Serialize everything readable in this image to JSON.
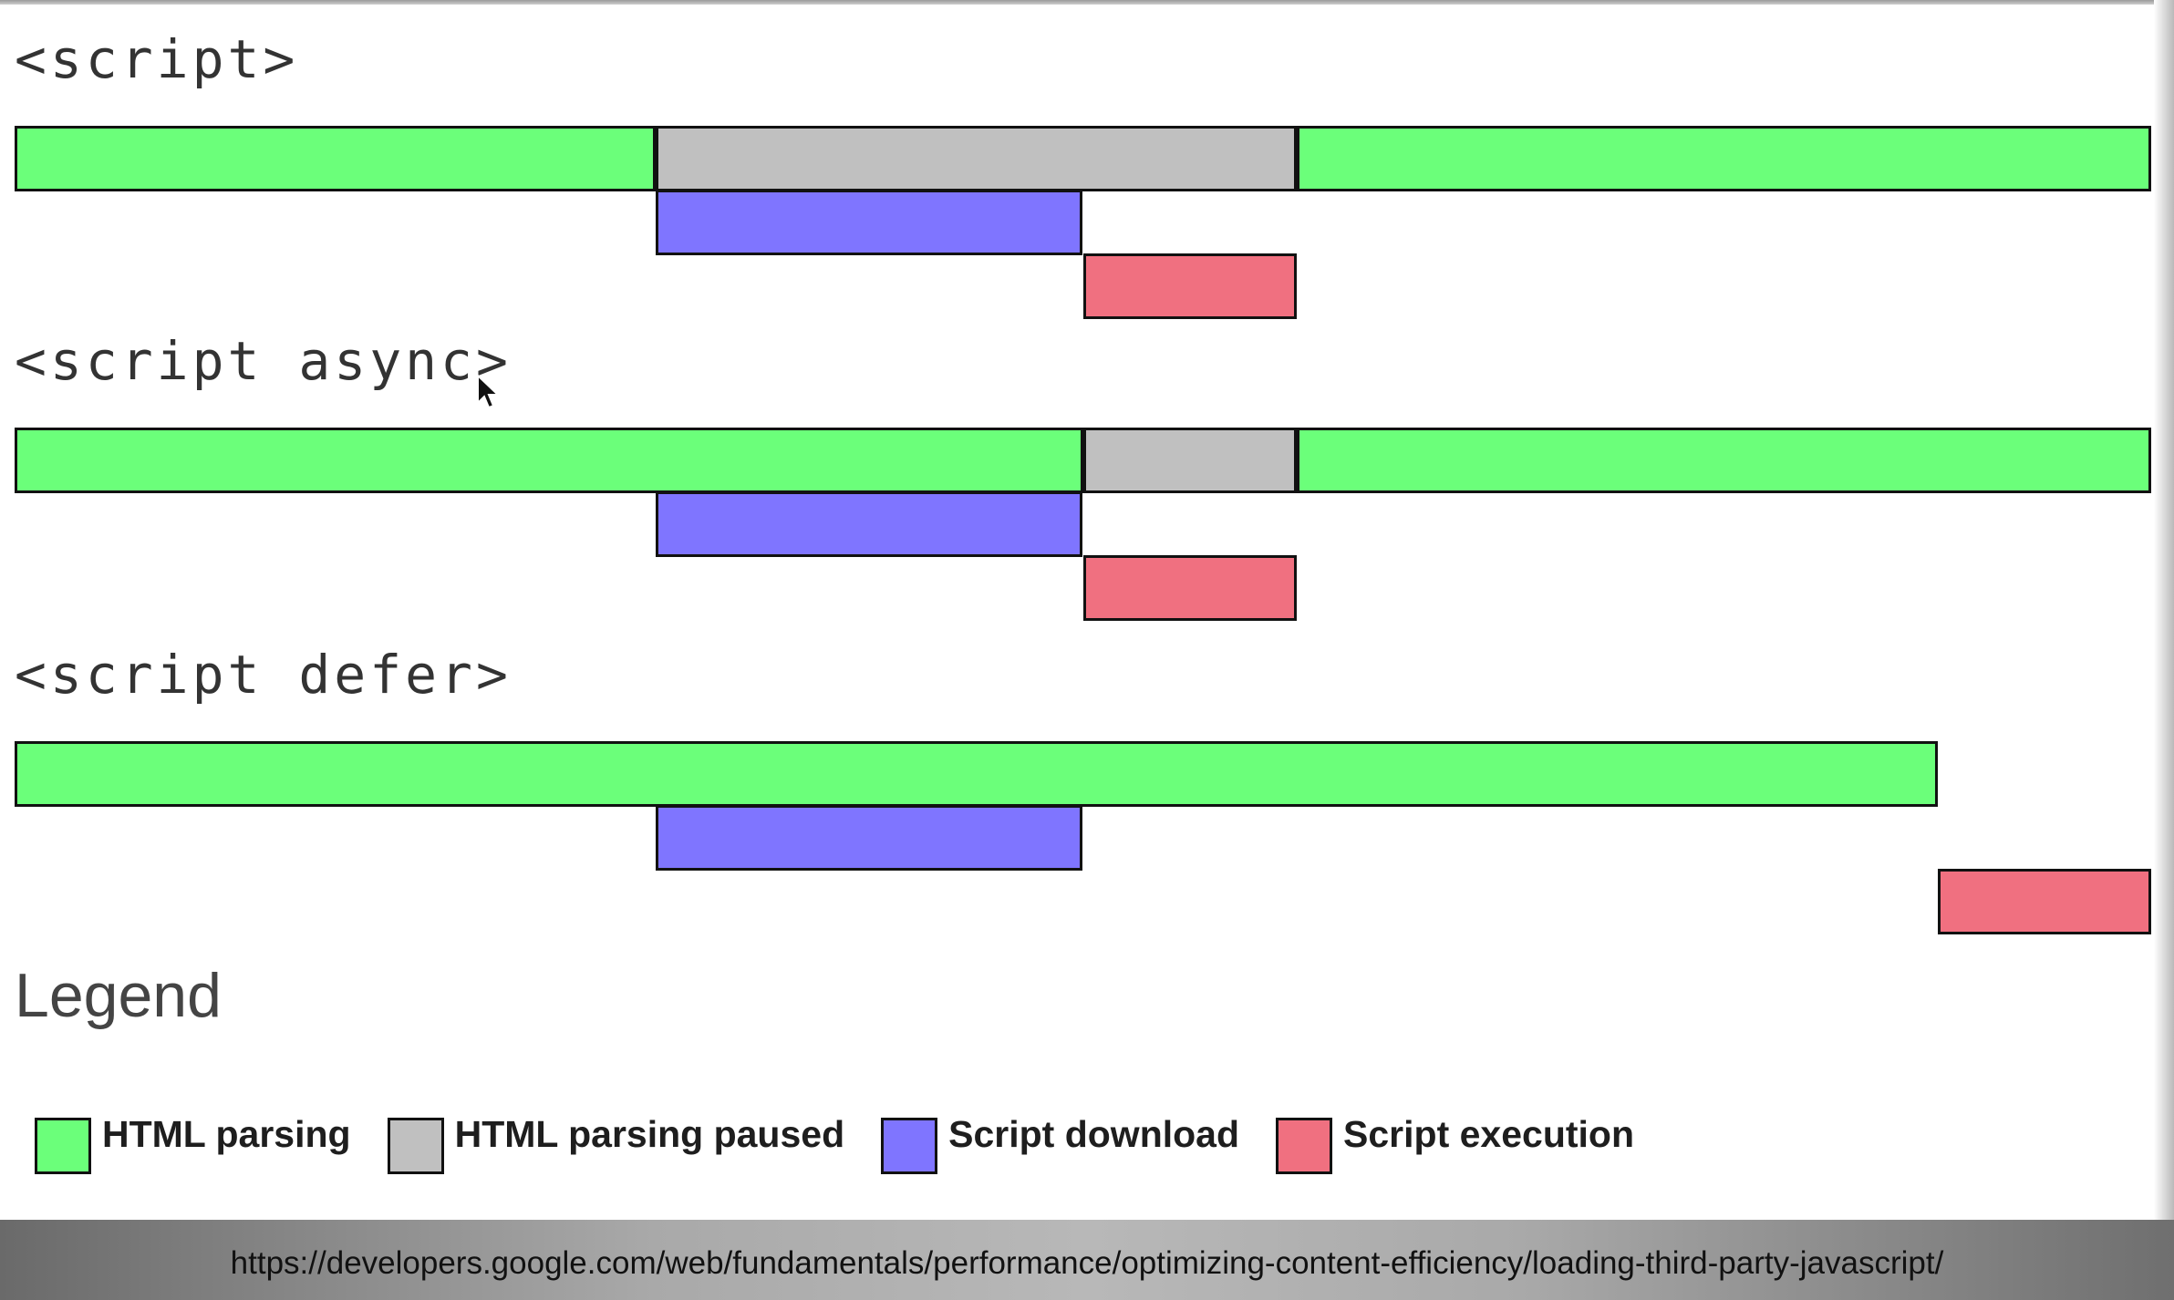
{
  "colors": {
    "html_parsing": "#6bff7a",
    "html_parsing_paused": "#c0c0c0",
    "script_download": "#7f75ff",
    "script_execution": "#f07080",
    "outline": "#111111"
  },
  "sections": [
    {
      "label": "<script>",
      "rows": [
        {
          "row": 1,
          "segments": [
            {
              "kind": "html_parsing",
              "start": 0,
              "end": 30
            },
            {
              "kind": "html_parsing_paused",
              "start": 30,
              "end": 60
            },
            {
              "kind": "html_parsing",
              "start": 60,
              "end": 100
            }
          ]
        },
        {
          "row": 2,
          "segments": [
            {
              "kind": "script_download",
              "start": 30,
              "end": 50
            }
          ]
        },
        {
          "row": 3,
          "segments": [
            {
              "kind": "script_execution",
              "start": 50,
              "end": 60
            }
          ]
        }
      ]
    },
    {
      "label": "<script async>",
      "rows": [
        {
          "row": 1,
          "segments": [
            {
              "kind": "html_parsing",
              "start": 0,
              "end": 50
            },
            {
              "kind": "html_parsing_paused",
              "start": 50,
              "end": 60
            },
            {
              "kind": "html_parsing",
              "start": 60,
              "end": 100
            }
          ]
        },
        {
          "row": 2,
          "segments": [
            {
              "kind": "script_download",
              "start": 30,
              "end": 50
            }
          ]
        },
        {
          "row": 3,
          "segments": [
            {
              "kind": "script_execution",
              "start": 50,
              "end": 60
            }
          ]
        }
      ]
    },
    {
      "label": "<script defer>",
      "rows": [
        {
          "row": 1,
          "segments": [
            {
              "kind": "html_parsing",
              "start": 0,
              "end": 90
            }
          ]
        },
        {
          "row": 2,
          "segments": [
            {
              "kind": "script_download",
              "start": 30,
              "end": 50
            }
          ]
        },
        {
          "row": 3,
          "segments": [
            {
              "kind": "script_execution",
              "start": 90,
              "end": 100
            }
          ]
        }
      ]
    }
  ],
  "legend": {
    "title": "Legend",
    "items": [
      {
        "kind": "html_parsing",
        "label": "HTML parsing"
      },
      {
        "kind": "html_parsing_paused",
        "label": "HTML parsing paused"
      },
      {
        "kind": "script_download",
        "label": "Script download"
      },
      {
        "kind": "script_execution",
        "label": "Script execution"
      }
    ]
  },
  "footer": {
    "url": "https://developers.google.com/web/fundamentals/performance/optimizing-content-efficiency/loading-third-party-javascript/"
  }
}
